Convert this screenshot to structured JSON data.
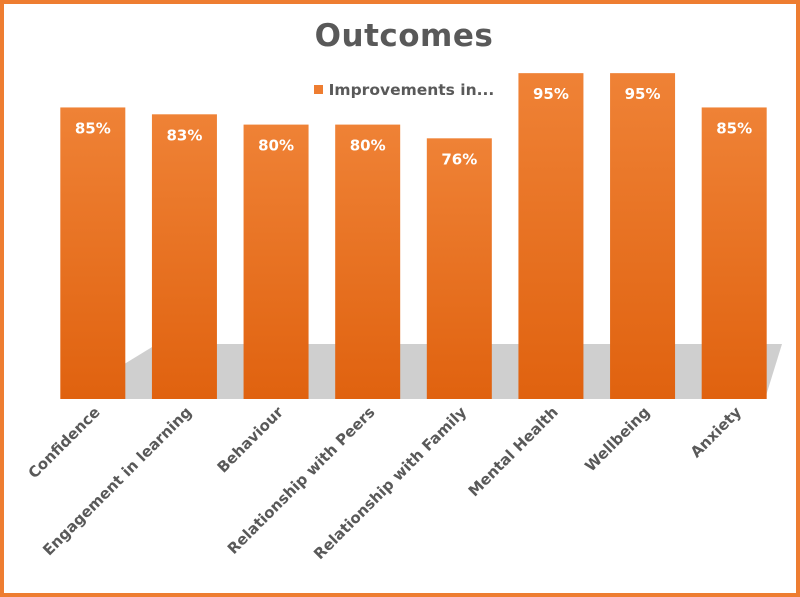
{
  "chart_data": {
    "type": "bar",
    "title": "Outcomes",
    "categories": [
      "Confidence",
      "Engagement in learning",
      "Behaviour",
      "Relationship with Peers",
      "Relationship with Family",
      "Mental Health",
      "Wellbeing",
      "Anxiety"
    ],
    "series": [
      {
        "name": "Improvements in...",
        "values": [
          85,
          83,
          80,
          80,
          76,
          95,
          95,
          85
        ],
        "labels": [
          "85%",
          "83%",
          "80%",
          "80%",
          "76%",
          "95%",
          "95%",
          "85%"
        ]
      }
    ],
    "xlabel": "",
    "ylabel": "",
    "ylim": [
      0,
      100
    ],
    "grid": false,
    "legend": "top-center",
    "colors": {
      "bar": "#ee7d31",
      "bar_dark": "#e0620f",
      "border": "#ee7d31",
      "text": "#595959",
      "label_text": "#ffffff"
    }
  }
}
